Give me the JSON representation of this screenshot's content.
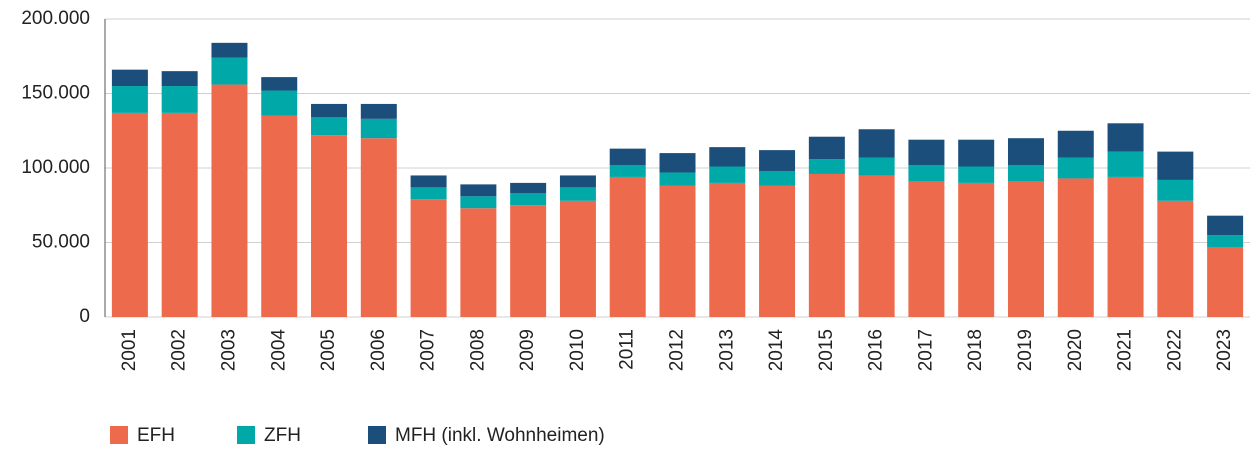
{
  "chart_data": {
    "type": "stacked_bar",
    "categories": [
      "2001",
      "2002",
      "2003",
      "2004",
      "2005",
      "2006",
      "2007",
      "2008",
      "2009",
      "2010",
      "2011",
      "2012",
      "2013",
      "2014",
      "2015",
      "2016",
      "2017",
      "2018",
      "2019",
      "2020",
      "2021",
      "2022",
      "2023"
    ],
    "series": [
      {
        "name": "EFH",
        "color": "#ee6a4c",
        "values": [
          137000,
          137000,
          156000,
          135000,
          122000,
          120000,
          79000,
          73000,
          75000,
          78000,
          94000,
          88000,
          90000,
          88000,
          96000,
          95000,
          91000,
          90000,
          91000,
          93000,
          94000,
          78000,
          47000
        ]
      },
      {
        "name": "ZFH",
        "color": "#00a8a8",
        "values": [
          18000,
          18000,
          18000,
          17000,
          12000,
          13000,
          8000,
          8000,
          8000,
          9000,
          8000,
          9000,
          11000,
          10000,
          10000,
          12000,
          11000,
          11000,
          11000,
          14000,
          17000,
          14000,
          8000
        ]
      },
      {
        "name": "MFH (inkl. Wohnheimen)",
        "color": "#1b4e7a",
        "values": [
          11000,
          10000,
          10000,
          9000,
          9000,
          10000,
          8000,
          8000,
          7000,
          8000,
          11000,
          13000,
          13000,
          14000,
          15000,
          19000,
          17000,
          18000,
          18000,
          18000,
          19000,
          19000,
          13000
        ]
      }
    ],
    "ylim": [
      0,
      200000
    ],
    "yticks": [
      0,
      {
        "value": 50000,
        "label": "50.000"
      },
      {
        "value": 100000,
        "label": "100.000"
      },
      {
        "value": 150000,
        "label": "150.000"
      },
      {
        "value": 200000,
        "label": "200.000"
      }
    ],
    "grid": true,
    "legend": "bottom"
  }
}
